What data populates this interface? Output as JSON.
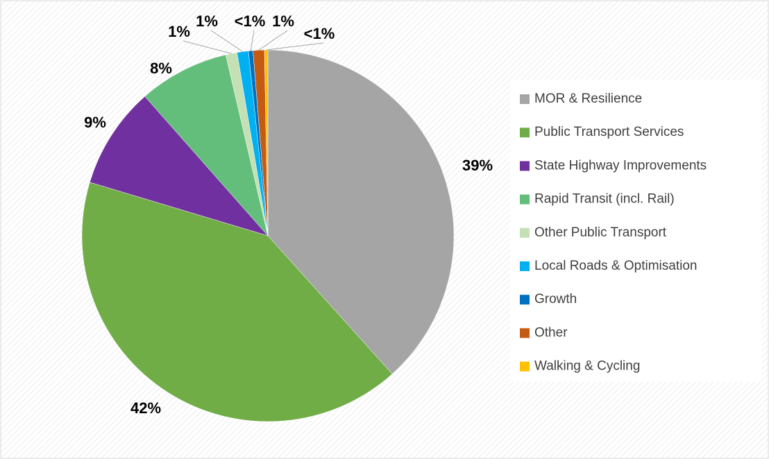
{
  "chart_data": {
    "type": "pie",
    "categories": [
      "MOR & Resilience",
      "Public Transport Services",
      "State Highway Improvements",
      "Rapid Transit (incl. Rail)",
      "Other Public Transport",
      "Local Roads & Optimisation",
      "Growth",
      "Other",
      "Walking & Cycling"
    ],
    "values": [
      39,
      42,
      9,
      8,
      1,
      1,
      0.4,
      1,
      0.3
    ],
    "value_labels": [
      "39%",
      "42%",
      "9%",
      "8%",
      "1%",
      "1%",
      "<1%",
      "1%",
      "<1%"
    ],
    "colors": [
      "#a5a5a5",
      "#70ad47",
      "#7030a0",
      "#63be7b",
      "#c5e0b4",
      "#00b0f0",
      "#0070c0",
      "#c55a11",
      "#ffc000"
    ],
    "legend": "right"
  }
}
